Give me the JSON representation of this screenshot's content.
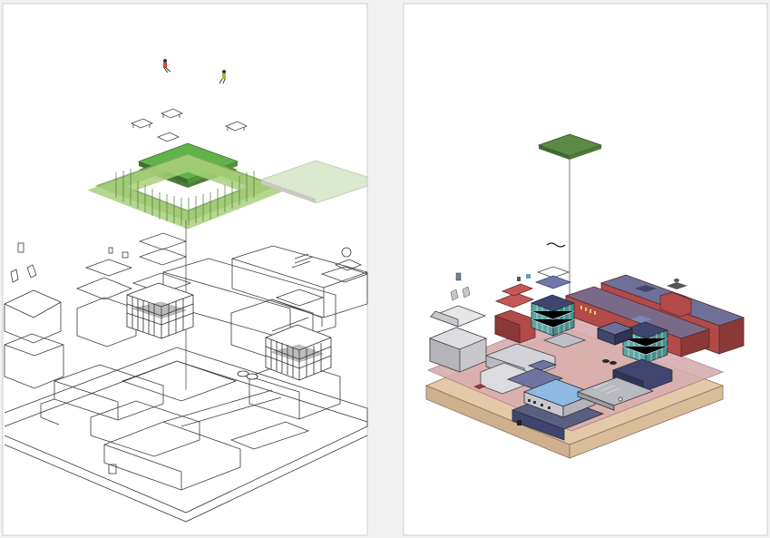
{
  "panels": [
    {
      "id": "left",
      "style": "line-drawing"
    },
    {
      "id": "right",
      "style": "colored-model"
    }
  ],
  "colors": {
    "background": "#f1f1f1",
    "panel_fill": "#ffffff",
    "panel_border": "#cfcfcf",
    "line": "#3a3a3a",
    "green_roof": "#62b24a",
    "green_roof_dark": "#4a7f38",
    "green_tree": "#a8d07a",
    "pale_green": "#dbe9cf",
    "brick": "#b24a4a",
    "brick_dark": "#8a3838",
    "navy": "#3f456f",
    "slate": "#5a5f80",
    "glass": "#5fa7a4",
    "grey_block": "#c8c8cc",
    "plinth_tan": "#e4c9a9",
    "plinth_pink": "#d8aeae",
    "light_blue_roof": "#8fb8e3"
  }
}
